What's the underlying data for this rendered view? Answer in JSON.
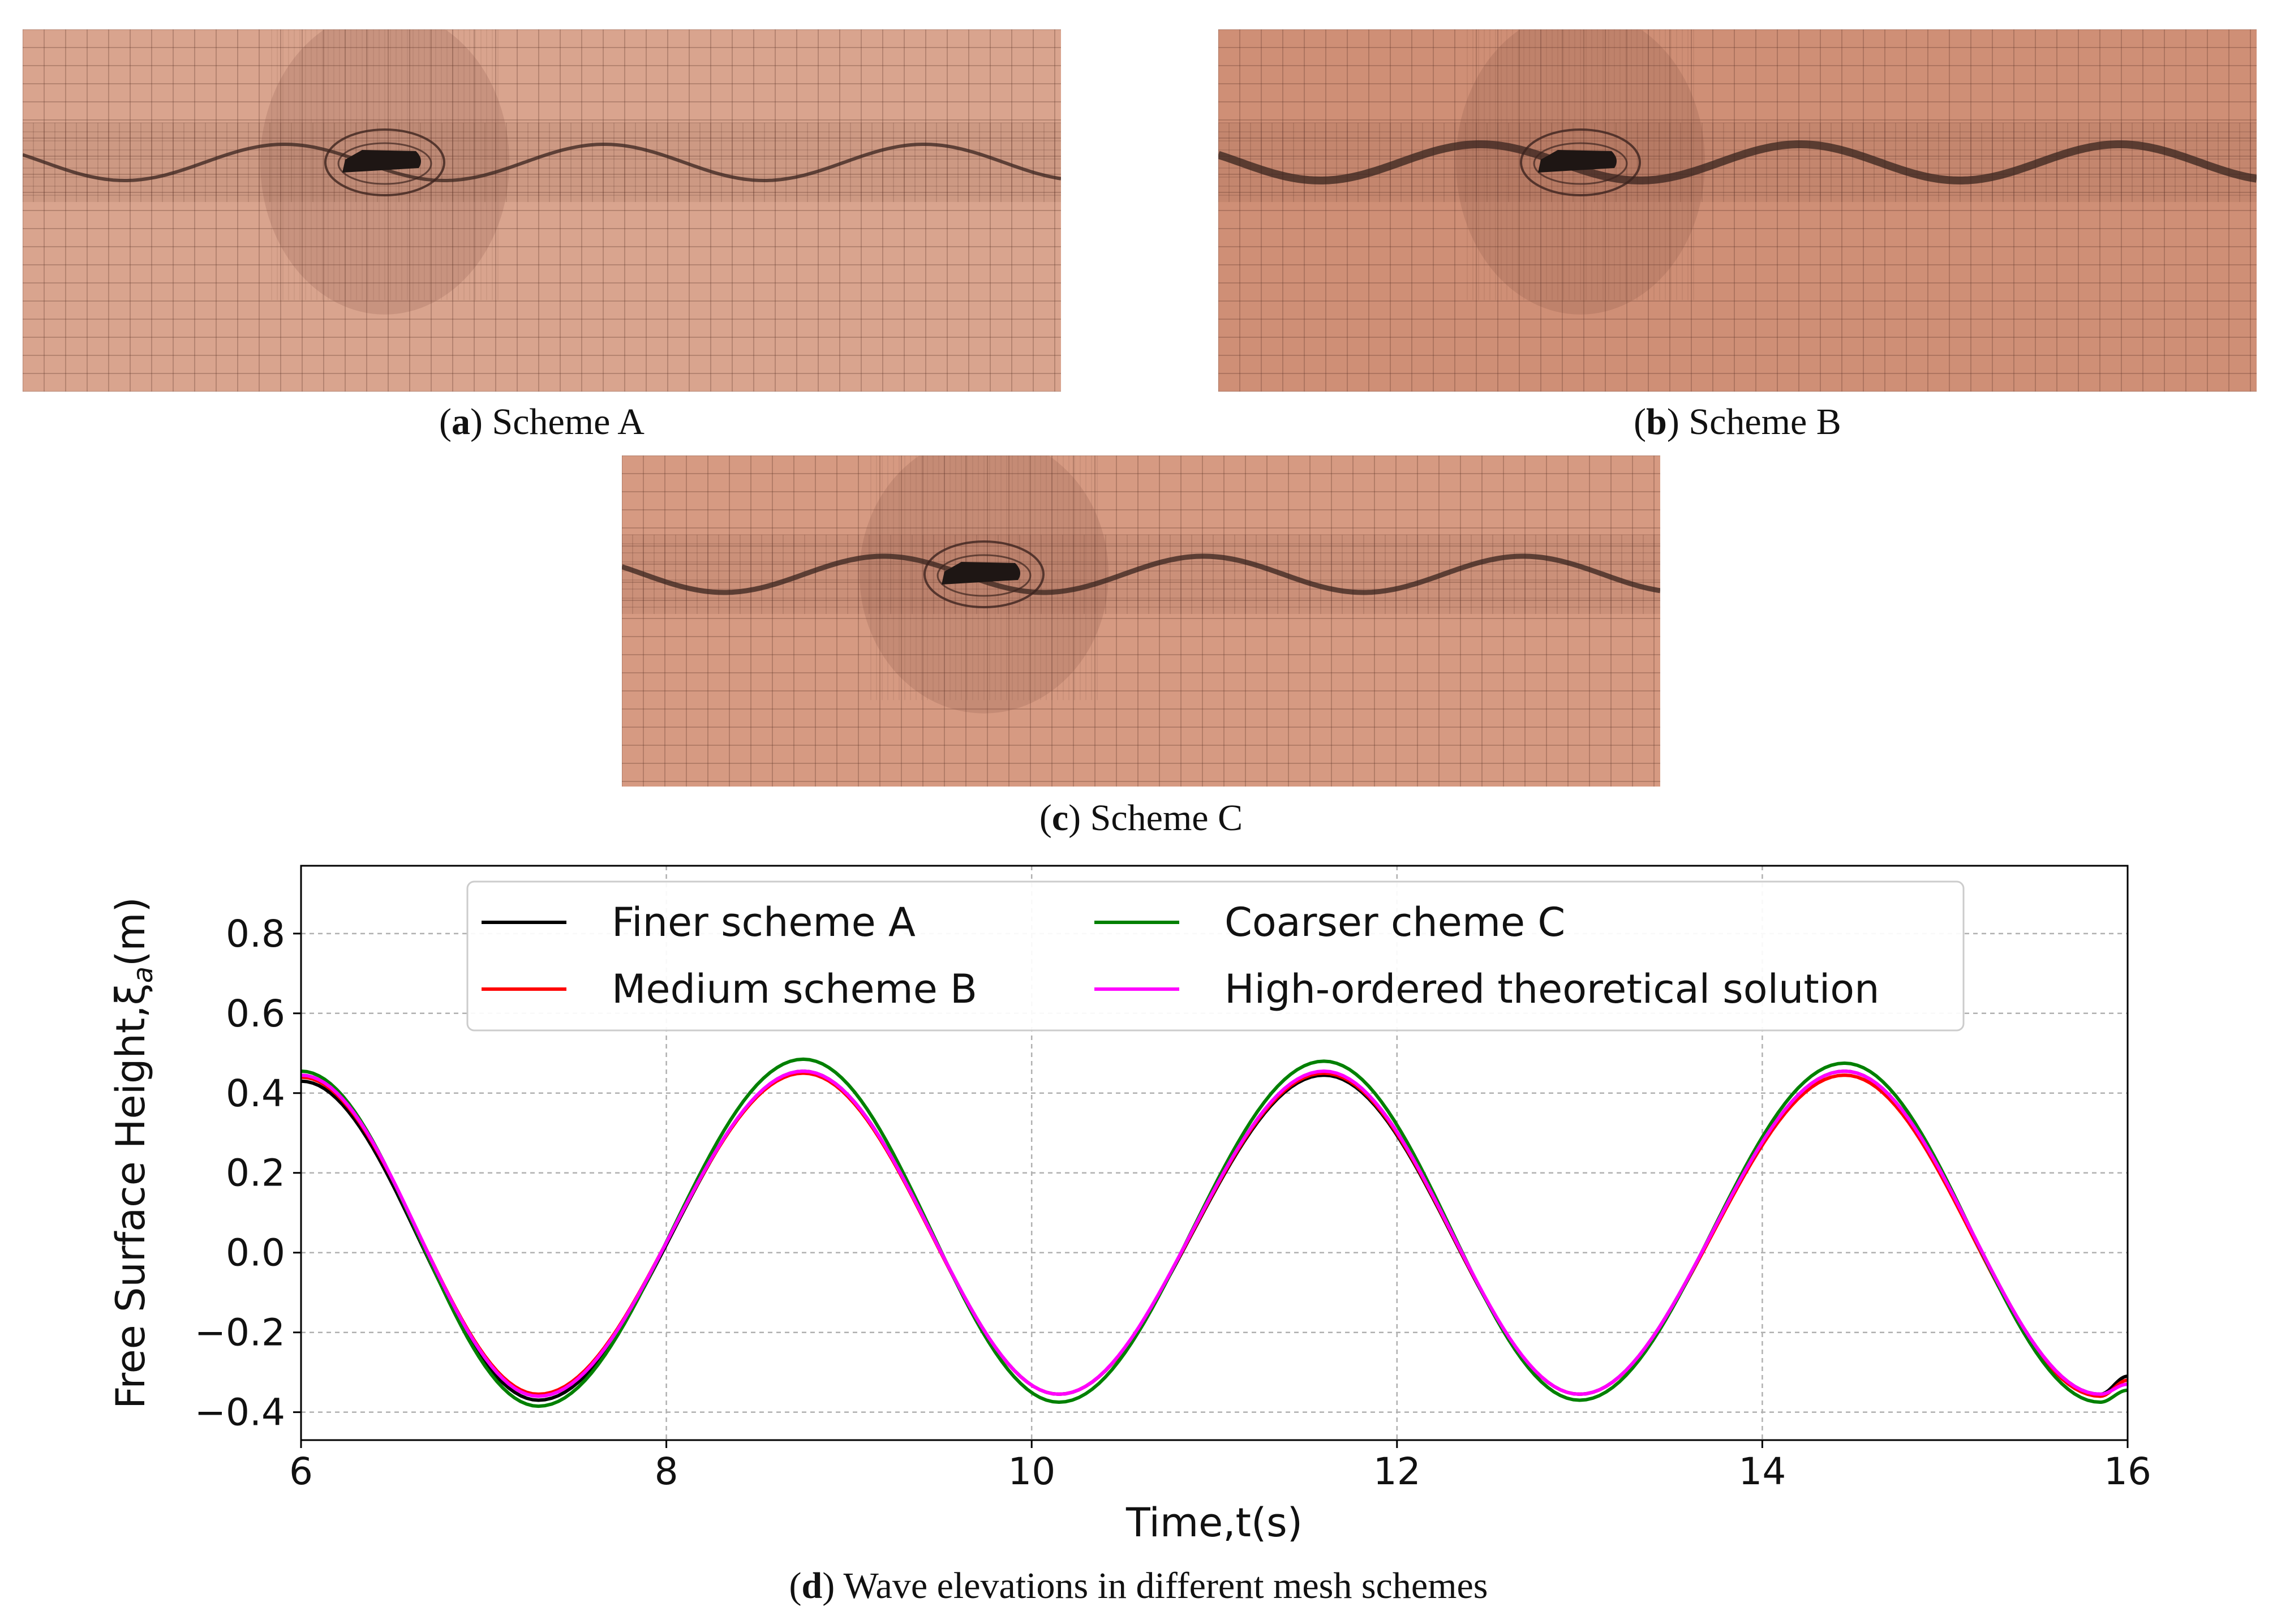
{
  "figures": [
    {
      "letter": "a",
      "label": "Scheme A",
      "tone": "#d9a48e",
      "wave_weight": "light"
    },
    {
      "letter": "b",
      "label": "Scheme B",
      "tone": "#cf8f76",
      "wave_weight": "heavy"
    },
    {
      "letter": "c",
      "label": "Scheme C",
      "tone": "#d69a82",
      "wave_weight": "medium"
    }
  ],
  "chart_caption": {
    "letter": "d",
    "label": "Wave elevations in different mesh schemes"
  },
  "chart_data": {
    "type": "line",
    "title": "",
    "xlabel": "Time,t(s)",
    "ylabel": "Free Surface Height,ξa(m)",
    "xlim": [
      6,
      16
    ],
    "ylim": [
      -0.47,
      0.97
    ],
    "xticks": [
      6,
      8,
      10,
      12,
      14,
      16
    ],
    "yticks": [
      -0.4,
      -0.2,
      0.0,
      0.2,
      0.4,
      0.6,
      0.8
    ],
    "ytick_labels": [
      "−0.4",
      "−0.2",
      "0.0",
      "0.2",
      "0.4",
      "0.6",
      "0.8"
    ],
    "xtick_labels": [
      "6",
      "8",
      "10",
      "12",
      "14",
      "16"
    ],
    "grid": true,
    "legend_position": "top-center",
    "x": [
      6.0,
      7.3,
      8.75,
      10.15,
      11.6,
      13.0,
      14.45,
      15.85,
      16.0
    ],
    "series": [
      {
        "name": "Finer scheme A",
        "color": "#000000",
        "values": [
          0.43,
          -0.37,
          0.455,
          -0.355,
          0.445,
          -0.355,
          0.455,
          -0.355,
          -0.31
        ]
      },
      {
        "name": "Medium scheme B",
        "color": "#ff0000",
        "values": [
          0.44,
          -0.355,
          0.45,
          -0.355,
          0.45,
          -0.355,
          0.445,
          -0.36,
          -0.32
        ]
      },
      {
        "name": "Coarser cheme C",
        "color": "#008000",
        "values": [
          0.455,
          -0.385,
          0.485,
          -0.375,
          0.48,
          -0.37,
          0.475,
          -0.375,
          -0.345
        ]
      },
      {
        "name": "High-ordered theoretical solution",
        "color": "#ff00ff",
        "values": [
          0.445,
          -0.36,
          0.455,
          -0.355,
          0.455,
          -0.355,
          0.455,
          -0.355,
          -0.33
        ]
      }
    ]
  }
}
